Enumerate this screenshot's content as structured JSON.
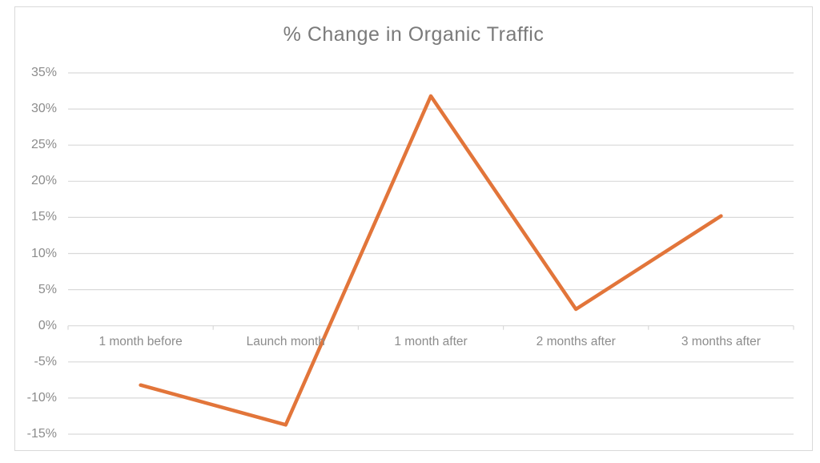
{
  "chart_data": {
    "type": "line",
    "title": "% Change in Organic Traffic",
    "categories": [
      "1 month before",
      "Launch month",
      "1 month after",
      "2 months after",
      "3 months after"
    ],
    "values": [
      -8.2,
      -13.7,
      31.8,
      2.3,
      15.2
    ],
    "xlabel": "",
    "ylabel": "",
    "ylim": [
      -15,
      35
    ],
    "ytick_step": 5,
    "ytick_labels": [
      "35%",
      "30%",
      "25%",
      "20%",
      "15%",
      "10%",
      "5%",
      "0%",
      "-5%",
      "-10%",
      "-15%"
    ],
    "grid": true,
    "legend_position": "none",
    "line_color": "#e2753a",
    "grid_color": "#d9d9d9",
    "frame_border_color": "#d9d9d9",
    "title_color": "#7a7a7a",
    "axis_text_color": "#8c8c8c",
    "background_color": "#ffffff"
  }
}
